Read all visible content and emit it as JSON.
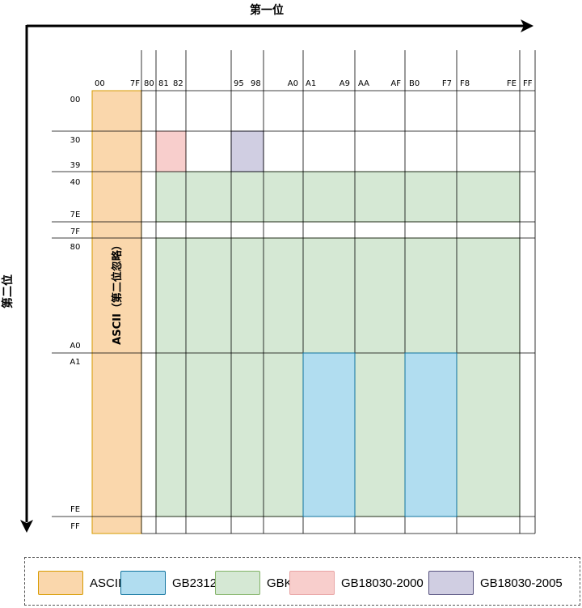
{
  "axis": {
    "first_byte_title": "第一位",
    "second_byte_title": "第二位"
  },
  "first_byte_labels": [
    "00",
    "7F",
    "80",
    "81",
    "82",
    "95",
    "98",
    "A0",
    "A1",
    "A9",
    "AA",
    "AF",
    "B0",
    "F7",
    "F8",
    "FE",
    "FF"
  ],
  "second_byte_labels": [
    "00",
    "30",
    "39",
    "40",
    "7E",
    "7F",
    "80",
    "A0",
    "A1",
    "FE",
    "FF"
  ],
  "regions": {
    "ascii_label": "ASCII（第二位忽略）"
  },
  "colors": {
    "ascii_fill": "#fad7ac",
    "ascii_stroke": "#d79b00",
    "gb2312_fill": "#b1ddf0",
    "gb2312_stroke": "#10739e",
    "gbk_fill": "#d5e8d4",
    "gbk_stroke": "#82b366",
    "gb18030_2000_fill": "#f8cecc",
    "gb18030_2000_stroke": "#e8a4a4",
    "gb18030_2005_fill": "#d0cee2",
    "gb18030_2005_stroke": "#56517e"
  },
  "legend": [
    {
      "label": "ASCII",
      "icon": "swatch-orange"
    },
    {
      "label": "GB2312",
      "icon": "swatch-blue"
    },
    {
      "label": "GBK",
      "icon": "swatch-green"
    },
    {
      "label": "GB18030-2000",
      "icon": "swatch-pink"
    },
    {
      "label": "GB18030-2005",
      "icon": "swatch-purple"
    }
  ]
}
